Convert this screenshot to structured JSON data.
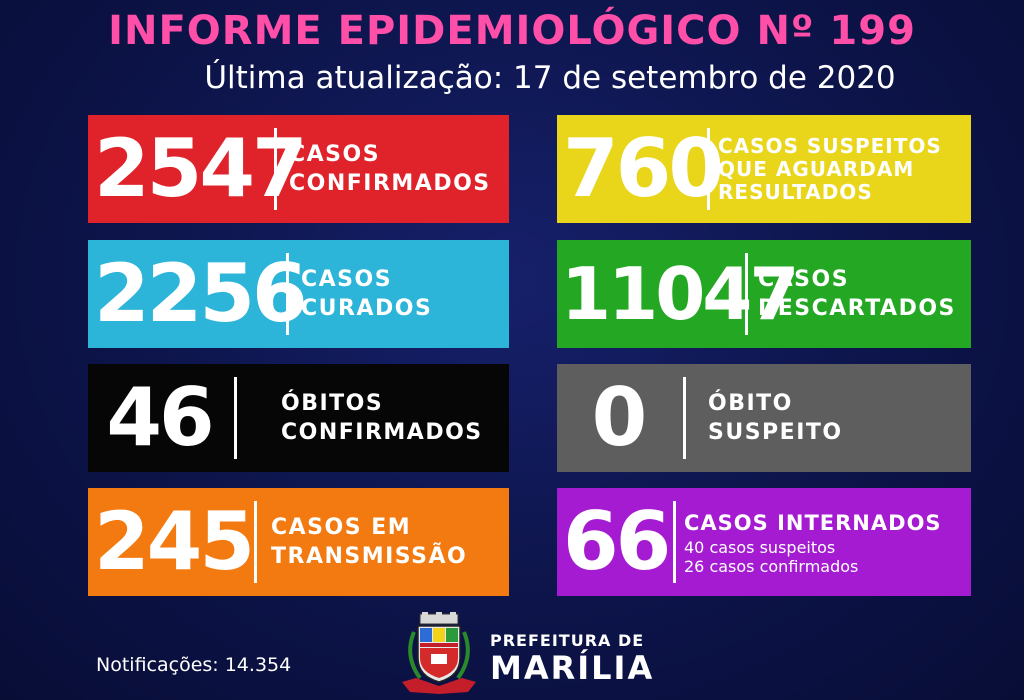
{
  "header": {
    "title": "INFORME EPIDEMIOLÓGICO Nº 199",
    "subtitle": "Última atualização: 17 de setembro de 2020"
  },
  "cards": [
    {
      "value": "2547",
      "label_line1": "CASOS",
      "label_line2": "CONFIRMADOS",
      "color": "#e0232b"
    },
    {
      "value": "760",
      "label_line1": "CASOS SUSPEITOS",
      "label_line2": "QUE AGUARDAM",
      "label_line3": "RESULTADOS",
      "color": "#e9d61a"
    },
    {
      "value": "2256",
      "label_line1": "CASOS",
      "label_line2": "CURADOS",
      "color": "#2db4d9"
    },
    {
      "value": "11047",
      "label_line1": "CASOS",
      "label_line2": "DESCARTADOS",
      "color": "#24a824"
    },
    {
      "value": "46",
      "label_line1": "ÓBITOS",
      "label_line2": "CONFIRMADOS",
      "color": "#060606"
    },
    {
      "value": "0",
      "label_line1": "ÓBITO",
      "label_line2": "SUSPEITO",
      "color": "#5e5e5e"
    },
    {
      "value": "245",
      "label_line1": "CASOS EM",
      "label_line2": "TRANSMISSÃO",
      "color": "#f27a10"
    },
    {
      "value": "66",
      "label_line1": "CASOS INTERNADOS",
      "detail_line1": "40 casos suspeitos",
      "detail_line2": "26 casos confirmados",
      "color": "#a51bd1"
    }
  ],
  "footer": {
    "notifications": "Notificações: 14.354",
    "pref_top": "PREFEITURA DE",
    "pref_name": "MARÍLIA",
    "crest_icon": "city-crest-icon"
  }
}
